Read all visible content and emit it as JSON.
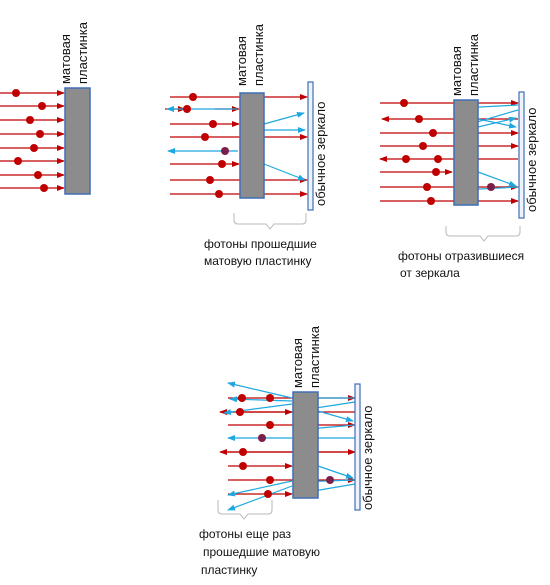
{
  "labels": {
    "matte_plate_line1": "матовая",
    "matte_plate_line2": "пластинка",
    "mirror": "обычное зеркало"
  },
  "captions": {
    "passed_line1": "фотоны прошедшие",
    "passed_line2": "матовую пластинку",
    "reflected_line1": "фотоны отразившиеся",
    "reflected_line2": "от зеркала",
    "again_line1": "фотоны еще раз",
    "again_line2": "прошедшие матовую",
    "again_line3": "пластинку"
  },
  "colors": {
    "photon_red": "#c00000",
    "light_blue": "#1fa8e0",
    "plate_fill": "#8c8c8c",
    "plate_stroke": "#3f6fb5",
    "mirror_fill": "#eef3fb",
    "mirror_stroke": "#3f6fb5",
    "photon_dark": "#7a1f4a"
  }
}
